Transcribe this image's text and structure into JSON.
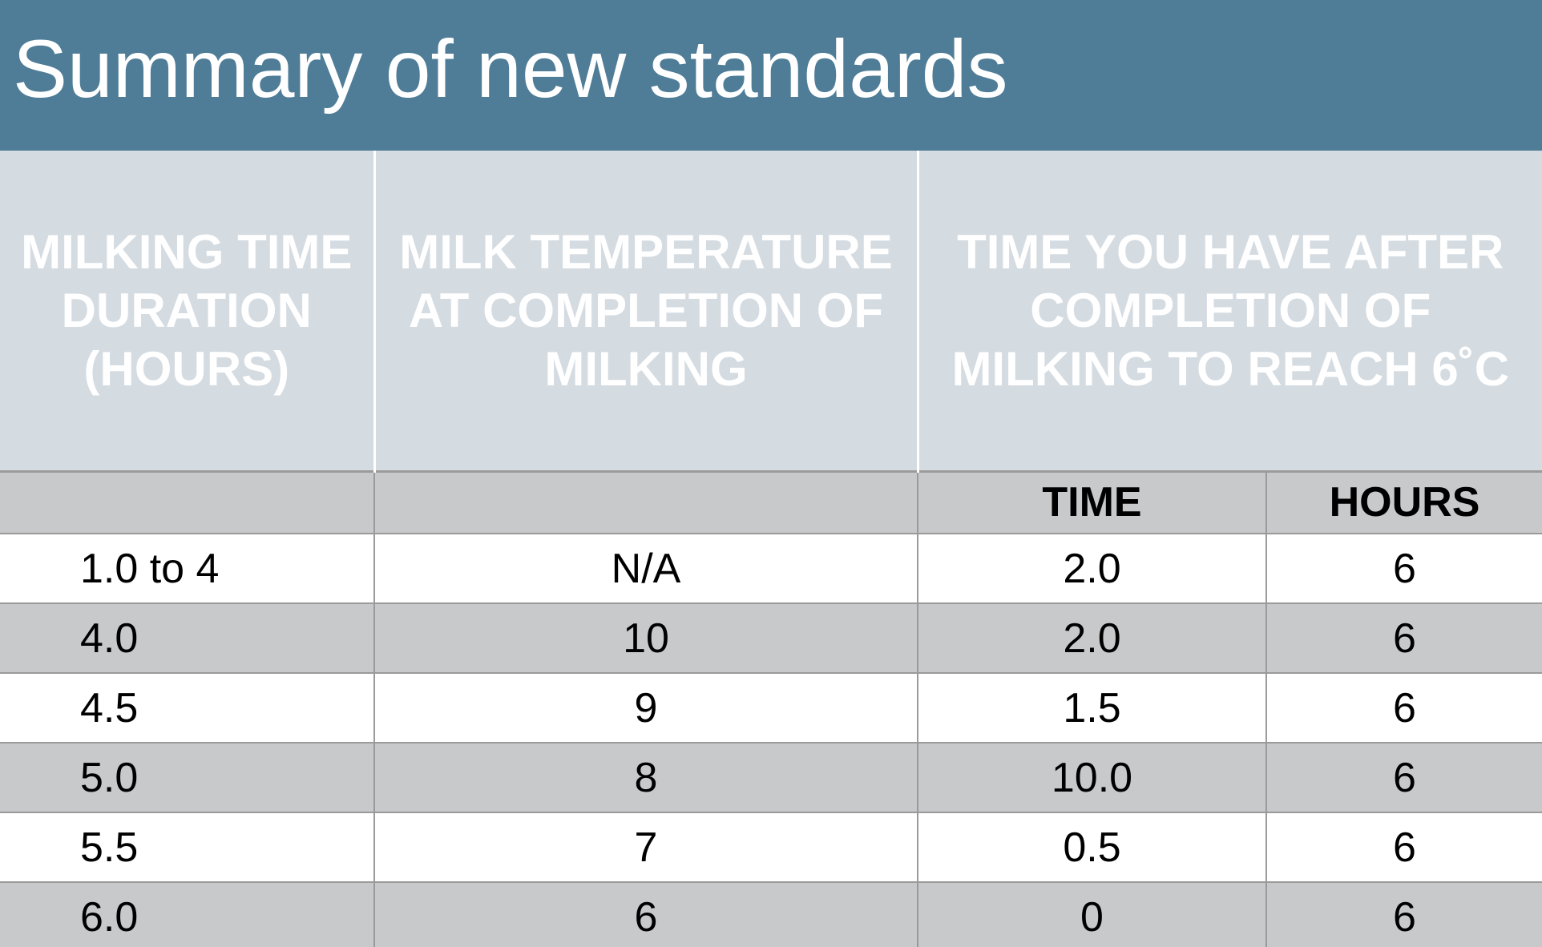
{
  "slide": {
    "title": "Summary of new standards"
  },
  "table": {
    "headers": [
      "MILKING TIME DURATION (HOURS)",
      "MILK TEMPERATURE AT COMPLETION OF MILKING",
      "TIME YOU HAVE AFTER COMPLETION OF MILKING TO REACH 6˚C"
    ],
    "subheaders": [
      "",
      "",
      "TIME",
      "HOURS"
    ],
    "rows": [
      [
        "1.0 to 4",
        "N/A",
        "2.0",
        "6"
      ],
      [
        "4.0",
        "10",
        "2.0",
        "6"
      ],
      [
        "4.5",
        "9",
        "1.5",
        "6"
      ],
      [
        "5.0",
        "8",
        "10.0",
        "6"
      ],
      [
        "5.5",
        "7",
        "0.5",
        "6"
      ],
      [
        "6.0",
        "6",
        "0",
        "6"
      ]
    ]
  },
  "colors": {
    "title_bar": "#4f7d98",
    "header_bg": "#d4dbe1",
    "band_gray": "#c8c9cb",
    "band_white": "#ffffff"
  }
}
